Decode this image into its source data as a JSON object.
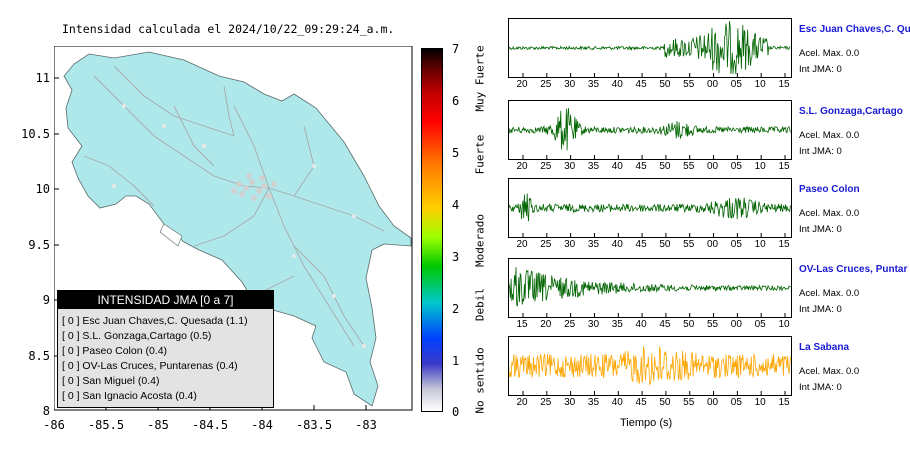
{
  "map": {
    "title": "Intensidad calculada el 2024/10/22_09:29:24_a.m.",
    "lat_ticks": [
      "11",
      "10.5",
      "10",
      "9.5",
      "9",
      "8.5",
      "8"
    ],
    "lon_ticks": [
      "-86",
      "-85.5",
      "-85",
      "-84.5",
      "-84",
      "-83.5",
      "-83"
    ]
  },
  "colorbar": {
    "numbers": [
      "7",
      "6",
      "5",
      "4",
      "3",
      "2",
      "1",
      "0"
    ],
    "categories": [
      "Muy Fuerte",
      "Fuerte",
      "Moderado",
      "Debil",
      "No sentido"
    ]
  },
  "legend": {
    "title": "INTENSIDAD JMA [0 a 7]",
    "rows": [
      "[ 0 ]  Esc Juan Chaves,C. Quesada (1.1)",
      "[ 0 ]  S.L. Gonzaga,Cartago (0.5)",
      "[ 0 ]  Paseo Colon (0.4)",
      "[ 0 ]  OV-Las Cruces, Puntarenas (0.4)",
      "[ 0 ]  San Miguel (0.4)",
      "[ 0 ]  San Ignacio Acosta (0.4)"
    ]
  },
  "stations": [
    {
      "name": "Esc Juan Chaves,C. Qu",
      "acel": "Acel. Max. 0.0",
      "int": "Int JMA: 0",
      "color": "#006400",
      "ticks": [
        "20",
        "25",
        "30",
        "35",
        "40",
        "45",
        "50",
        "55",
        "00",
        "05",
        "10",
        "15"
      ]
    },
    {
      "name": "S.L. Gonzaga,Cartago",
      "acel": "Acel. Max. 0.0",
      "int": "Int JMA: 0",
      "color": "#006400",
      "ticks": [
        "20",
        "25",
        "30",
        "35",
        "40",
        "45",
        "50",
        "55",
        "00",
        "05",
        "10",
        "15"
      ]
    },
    {
      "name": "Paseo Colon",
      "acel": "Acel. Max. 0.0",
      "int": "Int JMA: 0",
      "color": "#006400",
      "ticks": [
        "20",
        "25",
        "30",
        "35",
        "40",
        "45",
        "50",
        "55",
        "00",
        "05",
        "10",
        "15"
      ]
    },
    {
      "name": "OV-Las Cruces, Puntar",
      "acel": "Acel. Max. 0.0",
      "int": "Int JMA: 0",
      "color": "#006400",
      "ticks": [
        "15",
        "20",
        "25",
        "30",
        "35",
        "40",
        "45",
        "50",
        "55",
        "00",
        "05",
        "10"
      ]
    },
    {
      "name": "La Sabana",
      "acel": "Acel. Max. 0.0",
      "int": "Int JMA: 0",
      "color": "#ffa500",
      "ticks": [
        "20",
        "25",
        "30",
        "35",
        "40",
        "45",
        "50",
        "55",
        "00",
        "05",
        "10",
        "15"
      ]
    }
  ],
  "xaxis_title": "Tiempo (s)",
  "colors": {
    "land": "#afe8ea",
    "station_name": "#1a1ad6",
    "trace_green": "#006400",
    "trace_orange": "#ffa500"
  }
}
